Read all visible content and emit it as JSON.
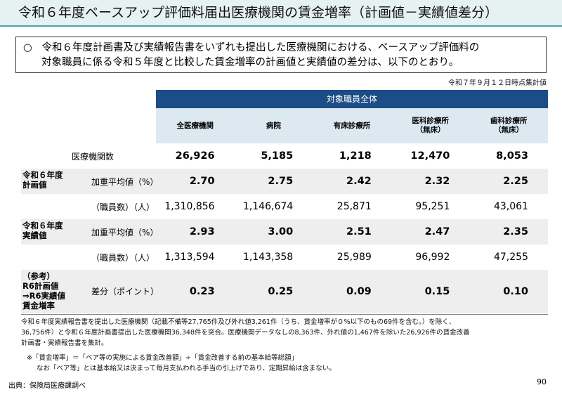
{
  "title": "令和６年度ベースアップ評価料届出医療機関の賃金増率（計画値－実績値差分）",
  "summary": {
    "bullet": "○",
    "line1": "令和６年度計画書及び実績報告書をいずれも提出した医療機関における、ベースアップ評価料の",
    "line2": "対象職員に係る令和５年度と比較した賃金増率の計画値と実績値の差分は、以下のとおり。"
  },
  "as_of": "令和７年９月１２日時点集計値",
  "table": {
    "header_group": "対象職員全体",
    "columns": [
      [
        "全医療機関"
      ],
      [
        "病院"
      ],
      [
        "有床診療所"
      ],
      [
        "医科診療所",
        "（無床）"
      ],
      [
        "歯科診療所",
        "（無床）"
      ]
    ],
    "rows": {
      "count": {
        "label": "医療機関数",
        "values": [
          "26,926",
          "5,185",
          "1,218",
          "12,470",
          "8,053"
        ]
      },
      "plan_avg": {
        "group": [
          "令和６年度",
          "計画値"
        ],
        "label": "加重平均値（%）",
        "values": [
          "2.70",
          "2.75",
          "2.42",
          "2.32",
          "2.25"
        ]
      },
      "plan_staff": {
        "label": "（職員数）（人）",
        "values": [
          "1,310,856",
          "1,146,674",
          "25,871",
          "95,251",
          "43,061"
        ]
      },
      "actual_avg": {
        "group": [
          "令和６年度",
          "実績値"
        ],
        "label": "加重平均値（%）",
        "values": [
          "2.93",
          "3.00",
          "2.51",
          "2.47",
          "2.35"
        ]
      },
      "actual_staff": {
        "label": "（職員数）（人）",
        "values": [
          "1,313,594",
          "1,143,358",
          "25,989",
          "96,992",
          "47,255"
        ]
      },
      "diff": {
        "group": [
          "（参考）",
          "R6計画値",
          "⇒R6実績値",
          "賃金増率"
        ],
        "label": "差分（ポイント）",
        "values": [
          "0.23",
          "0.25",
          "0.09",
          "0.15",
          "0.10"
        ]
      }
    }
  },
  "notes": {
    "line1": "令和６年度実績報告書を提出した医療機関（記載不備等27,765件及び外れ値3,261件（うち、賃金増率が０%以下のもの69件を含む。）を除く、",
    "line2": "36,756件）と令和６年度計画書提出した医療機関36,348件を突合。医療機関データなしの8,363件、外れ値の1,467件を除いた26,926件の賃金改善",
    "line3": "計画書・実績報告書を集計。",
    "footnote1": "※「賃金増率」＝「ベア等の実施による賃金改善額」÷「賃金改善する前の基本給等総額」",
    "footnote2": "なお「ベア等」とは基本給又は決まって毎月支払われる手当の引上げであり、定期昇給は含まない。"
  },
  "source": "出典：保険局医療課調べ",
  "page_number": "90"
}
